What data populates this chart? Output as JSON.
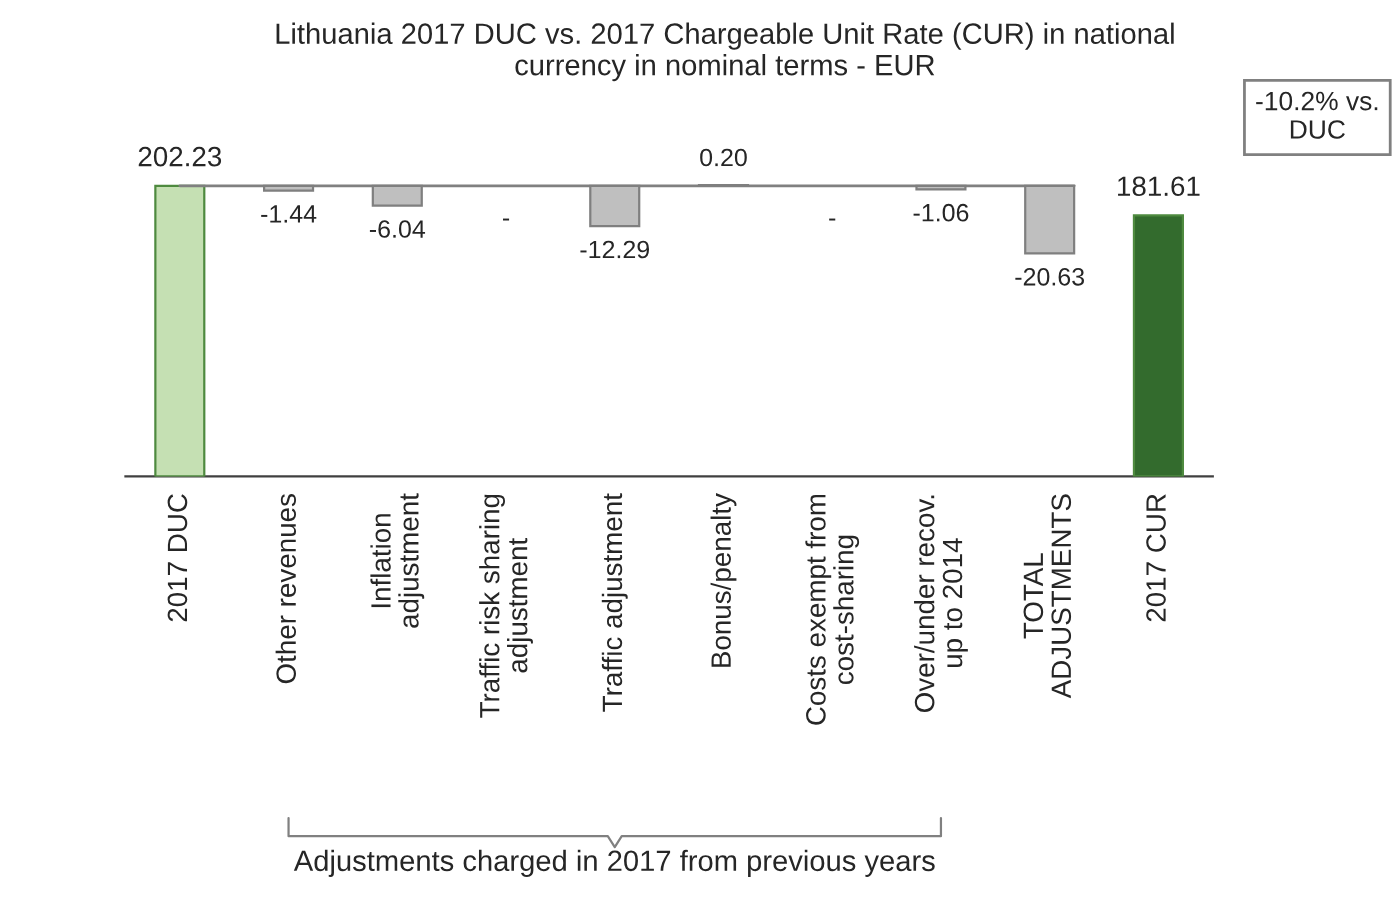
{
  "chart_data": {
    "type": "bar",
    "title": "Lithuania 2017 DUC vs. 2017 Chargeable Unit Rate (CUR) in national\ncurrency in nominal terms - EUR",
    "categories": [
      "2017 DUC",
      "Other revenues",
      "Inflation\nadjustment",
      "Traffic risk sharing\nadjustment",
      "Traffic adjustment",
      "Bonus/penalty",
      "Costs exempt from\ncost-sharing",
      "Over/under recov.\nup to 2014",
      "TOTAL\nADJUSTMENTS",
      "2017 CUR"
    ],
    "series": [
      {
        "values": [
          202.23,
          null,
          null,
          null,
          null,
          null,
          null,
          null,
          null,
          181.61
        ],
        "colors": [
          "#c5e0b3",
          null,
          null,
          null,
          null,
          null,
          null,
          null,
          null,
          "#336b2d"
        ],
        "value_labels": [
          "202.23",
          null,
          null,
          null,
          null,
          null,
          null,
          null,
          null,
          "181.61"
        ]
      },
      {
        "axis": "y2",
        "values": [
          null,
          -1.44,
          -6.04,
          null,
          -12.29,
          0.2,
          null,
          -1.06,
          -20.63,
          null
        ],
        "color": "#bfbfbf",
        "value_labels": [
          null,
          "-1.44",
          "-6.04",
          "-",
          "-12.29",
          "0.20",
          "-",
          "-1.06",
          "-20.63",
          null
        ]
      }
    ],
    "ref_lines": [
      {
        "axis": "y2",
        "value": 0,
        "color": "#808080"
      }
    ],
    "annotations": [
      "-10.2% vs.\nDUC",
      "Adjustments charged in 2017 from previous years"
    ],
    "grid": false,
    "legend": false
  }
}
